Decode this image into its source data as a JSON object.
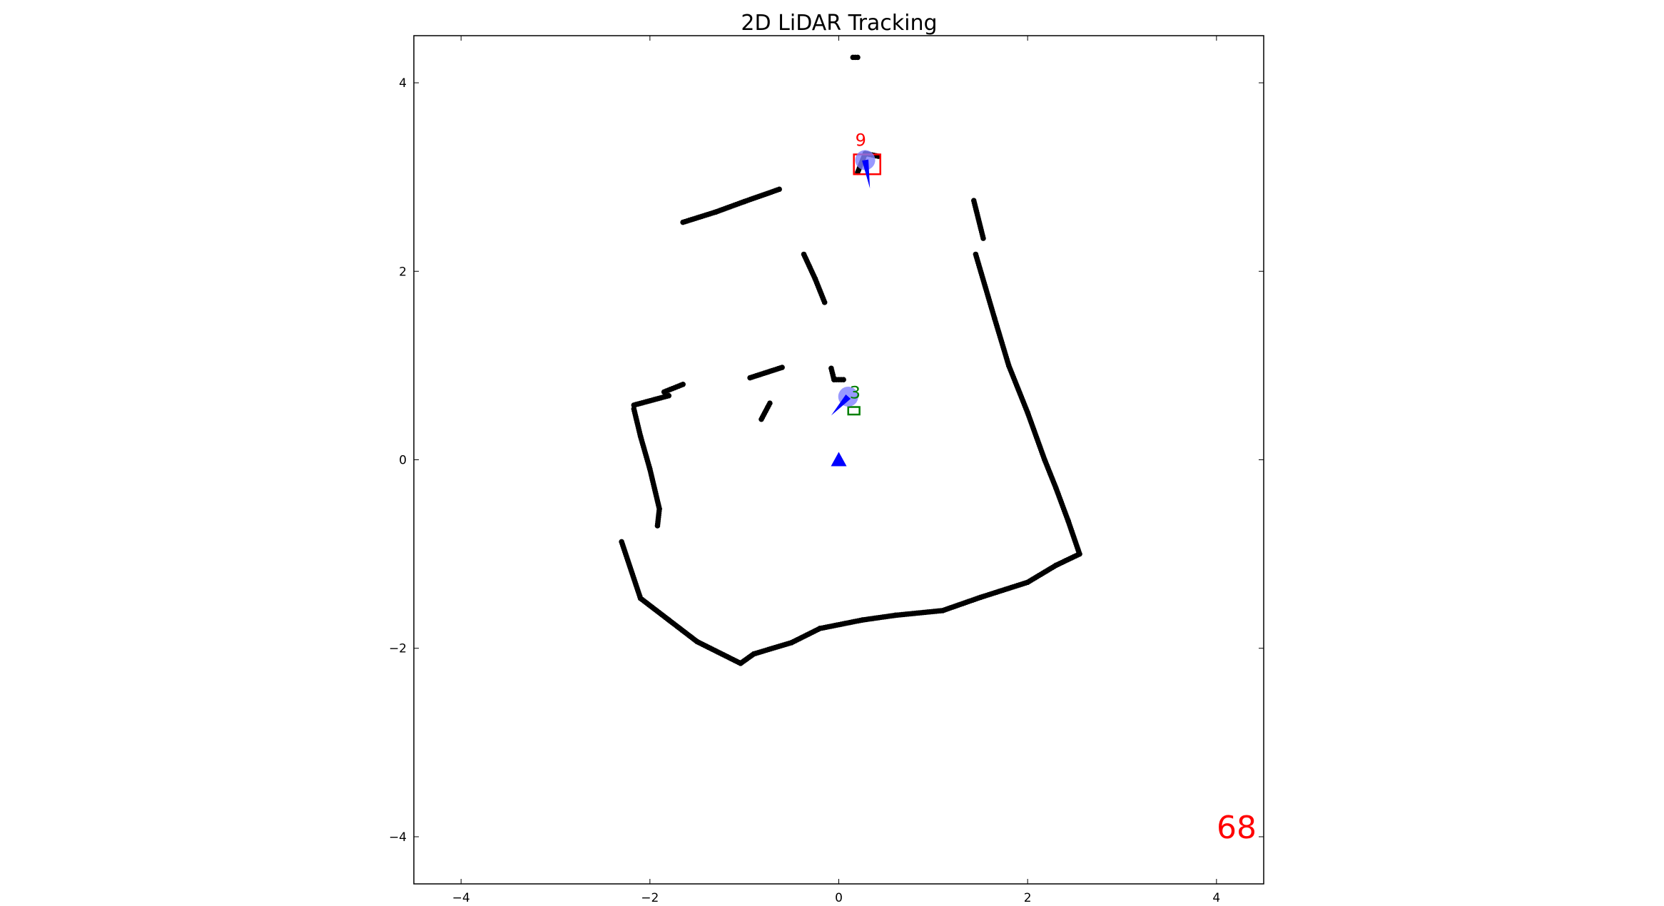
{
  "chart_data": {
    "type": "scatter",
    "title": "2D LiDAR Tracking",
    "xlabel": "",
    "ylabel": "",
    "xlim": [
      -4.5,
      4.5
    ],
    "ylim": [
      -4.5,
      4.5
    ],
    "xticks": [
      -4,
      -2,
      0,
      2,
      4
    ],
    "yticks": [
      -4,
      -2,
      0,
      2,
      4
    ],
    "xtick_labels": [
      "−4",
      "−2",
      "0",
      "2",
      "4"
    ],
    "ytick_labels": [
      "−4",
      "−2",
      "0",
      "2",
      "4"
    ],
    "grid": false,
    "frame_counter": "68",
    "frame_counter_color": "#ff0000",
    "scan_color": "#000000",
    "scan_segments": [
      [
        [
          -0.94,
          0.87
        ],
        [
          -0.6,
          0.98
        ]
      ],
      [
        [
          -0.82,
          0.43
        ],
        [
          -0.73,
          0.6
        ]
      ],
      [
        [
          -2.3,
          -0.87
        ],
        [
          -2.1,
          -1.47
        ],
        [
          -1.8,
          -1.7
        ],
        [
          -1.5,
          -1.93
        ],
        [
          -1.04,
          -2.16
        ],
        [
          -0.9,
          -2.06
        ],
        [
          -0.5,
          -1.94
        ],
        [
          -0.2,
          -1.79
        ],
        [
          0.25,
          -1.7
        ],
        [
          0.6,
          -1.65
        ],
        [
          1.1,
          -1.6
        ],
        [
          1.5,
          -1.46
        ],
        [
          2.0,
          -1.3
        ],
        [
          2.3,
          -1.12
        ],
        [
          2.55,
          -1.0
        ],
        [
          2.43,
          -0.65
        ],
        [
          2.3,
          -0.3
        ],
        [
          2.18,
          0.0
        ],
        [
          2.0,
          0.5
        ],
        [
          1.8,
          1.0
        ],
        [
          1.65,
          1.5
        ],
        [
          1.45,
          2.18
        ]
      ],
      [
        [
          1.43,
          2.75
        ],
        [
          1.53,
          2.35
        ]
      ],
      [
        [
          -2.17,
          0.54
        ],
        [
          -2.1,
          0.25
        ],
        [
          -2.0,
          -0.1
        ],
        [
          -1.9,
          -0.52
        ],
        [
          -1.92,
          -0.7
        ]
      ],
      [
        [
          -2.17,
          0.58
        ],
        [
          -1.8,
          0.68
        ]
      ],
      [
        [
          -1.85,
          0.72
        ],
        [
          -1.65,
          0.8
        ]
      ],
      [
        [
          -1.65,
          2.52
        ],
        [
          -1.3,
          2.63
        ],
        [
          -1.0,
          2.74
        ],
        [
          -0.63,
          2.87
        ]
      ],
      [
        [
          -0.37,
          2.18
        ],
        [
          -0.25,
          1.92
        ],
        [
          -0.15,
          1.67
        ]
      ],
      [
        [
          -0.08,
          0.97
        ],
        [
          -0.05,
          0.85
        ],
        [
          0.05,
          0.85
        ]
      ],
      [
        [
          0.15,
          4.27
        ],
        [
          0.2,
          4.27
        ]
      ],
      [
        [
          0.2,
          3.05
        ],
        [
          0.28,
          3.25
        ],
        [
          0.42,
          3.22
        ]
      ]
    ],
    "sensor_origin": {
      "x": 0,
      "y": 0,
      "color": "#0000ff",
      "marker": "triangle"
    },
    "tracks": [
      {
        "label": "9",
        "label_color": "#ff0000",
        "box": {
          "x_min": 0.16,
          "x_max": 0.44,
          "y_min": 3.03,
          "y_max": 3.24,
          "color": "#ff0000"
        },
        "estimate": {
          "x": 0.28,
          "y": 3.18
        },
        "velocity_end": {
          "x": 0.33,
          "y": 2.88
        },
        "covariance_color": "#7f7fff",
        "arrow_color": "#0000ff"
      },
      {
        "label": "3",
        "label_color": "#007f00",
        "box": {
          "x_min": 0.1,
          "x_max": 0.22,
          "y_min": 0.48,
          "y_max": 0.56,
          "color": "#007f00"
        },
        "estimate": {
          "x": 0.1,
          "y": 0.67
        },
        "velocity_end": {
          "x": -0.08,
          "y": 0.47
        },
        "covariance_color": "#7f7fff",
        "arrow_color": "#0000ff"
      }
    ]
  }
}
